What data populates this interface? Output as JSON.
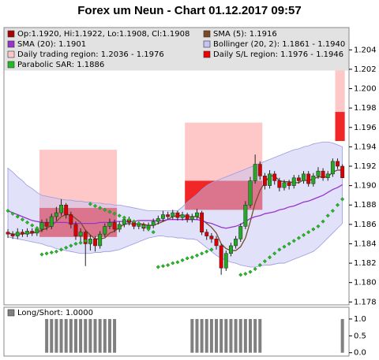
{
  "chart_data": [
    {
      "type": "candlestick",
      "title": "Forex um Neun - Chart 01.12.2017 09:57",
      "ohlc_name": "Op:1.1920, Hi:1.1922, Lo:1.1908, Cl:1.1908",
      "ohlc_color": "#aa0000",
      "up_color": "#22aa22",
      "down_color": "#dd0000",
      "open": [
        1.1852,
        1.185,
        1.1848,
        1.1852,
        1.185,
        1.1853,
        1.1851,
        1.1855,
        1.1862,
        1.1858,
        1.1868,
        1.1872,
        1.188,
        1.187,
        1.186,
        1.1848,
        1.1852,
        1.184,
        1.1845,
        1.1838,
        1.185,
        1.1858,
        1.1862,
        1.1855,
        1.186,
        1.1865,
        1.1862,
        1.1858,
        1.186,
        1.1856,
        1.1859,
        1.1863,
        1.1866,
        1.187,
        1.1868,
        1.1872,
        1.1867,
        1.187,
        1.1865,
        1.1868,
        1.1872,
        1.1852,
        1.1848,
        1.1845,
        1.1838,
        1.1815,
        1.183,
        1.1838,
        1.1845,
        1.1858,
        1.188,
        1.1905,
        1.1922,
        1.191,
        1.19,
        1.1912,
        1.1905,
        1.1898,
        1.1903,
        1.19,
        1.1908,
        1.1905,
        1.1912,
        1.1902,
        1.191,
        1.1915,
        1.1908,
        1.1912,
        1.1925,
        1.192
      ],
      "high": [
        1.1855,
        1.1853,
        1.1856,
        1.1855,
        1.1856,
        1.1856,
        1.1858,
        1.1865,
        1.1866,
        1.1871,
        1.1878,
        1.1886,
        1.1882,
        1.1873,
        1.1863,
        1.1856,
        1.1854,
        1.1849,
        1.1848,
        1.1853,
        1.1861,
        1.1866,
        1.1865,
        1.1863,
        1.1868,
        1.1868,
        1.1864,
        1.1863,
        1.1862,
        1.1862,
        1.1866,
        1.1869,
        1.1874,
        1.1873,
        1.1875,
        1.1874,
        1.1873,
        1.1872,
        1.1871,
        1.1876,
        1.1874,
        1.1855,
        1.1851,
        1.1848,
        1.184,
        1.1833,
        1.1841,
        1.1848,
        1.1861,
        1.1884,
        1.1909,
        1.1932,
        1.1925,
        1.1913,
        1.1916,
        1.1915,
        1.1908,
        1.1906,
        1.1906,
        1.1911,
        1.1911,
        1.1915,
        1.1915,
        1.1913,
        1.1919,
        1.1918,
        1.1915,
        1.1928,
        1.1928,
        1.1922
      ],
      "low": [
        1.1846,
        1.1845,
        1.1845,
        1.1847,
        1.1847,
        1.1848,
        1.1848,
        1.1852,
        1.1854,
        1.1855,
        1.1864,
        1.1869,
        1.1866,
        1.1856,
        1.1844,
        1.184,
        1.1817,
        1.1833,
        1.1832,
        1.1835,
        1.1847,
        1.1855,
        1.1852,
        1.1852,
        1.1857,
        1.1859,
        1.1855,
        1.1855,
        1.1853,
        1.1853,
        1.1856,
        1.186,
        1.1863,
        1.1865,
        1.1865,
        1.1864,
        1.1864,
        1.1862,
        1.1862,
        1.1865,
        1.1849,
        1.1844,
        1.1841,
        1.1834,
        1.1808,
        1.1812,
        1.1827,
        1.1835,
        1.1842,
        1.1855,
        1.1877,
        1.1902,
        1.1906,
        1.1896,
        1.1897,
        1.1901,
        1.1894,
        1.1895,
        1.1896,
        1.1897,
        1.1902,
        1.1902,
        1.1899,
        1.1899,
        1.1907,
        1.1905,
        1.1905,
        1.1909,
        1.1917,
        1.1908
      ],
      "close": [
        1.185,
        1.1848,
        1.1852,
        1.185,
        1.1853,
        1.1851,
        1.1855,
        1.1862,
        1.1858,
        1.1868,
        1.1872,
        1.188,
        1.187,
        1.186,
        1.1848,
        1.1852,
        1.184,
        1.1845,
        1.1838,
        1.185,
        1.1858,
        1.1862,
        1.1855,
        1.186,
        1.1865,
        1.1862,
        1.1858,
        1.186,
        1.1856,
        1.1859,
        1.1863,
        1.1866,
        1.187,
        1.1868,
        1.1872,
        1.1867,
        1.187,
        1.1865,
        1.1868,
        1.1872,
        1.1852,
        1.1848,
        1.1845,
        1.1838,
        1.1815,
        1.183,
        1.1838,
        1.1845,
        1.1858,
        1.188,
        1.1905,
        1.1922,
        1.191,
        1.19,
        1.1912,
        1.1905,
        1.1898,
        1.1903,
        1.19,
        1.1908,
        1.1905,
        1.1912,
        1.1902,
        1.191,
        1.1915,
        1.1908,
        1.1912,
        1.1925,
        1.192,
        1.1908
      ],
      "series": [
        {
          "name": "SMA (5): 1.1916",
          "color": "#7a4a22",
          "style": "line",
          "values": [
            1.1851,
            1.185,
            1.185,
            1.185,
            1.1851,
            1.1851,
            1.1852,
            1.1854,
            1.1856,
            1.1859,
            1.1863,
            1.1868,
            1.187,
            1.187,
            1.1866,
            1.1862,
            1.1854,
            1.1849,
            1.1845,
            1.1845,
            1.1846,
            1.1851,
            1.1853,
            1.1857,
            1.186,
            1.1861,
            1.186,
            1.1861,
            1.186,
            1.1859,
            1.1859,
            1.1861,
            1.1863,
            1.1865,
            1.1868,
            1.1869,
            1.1869,
            1.1868,
            1.1868,
            1.1868,
            1.1865,
            1.1861,
            1.1857,
            1.1851,
            1.184,
            1.1835,
            1.1833,
            1.1833,
            1.1837,
            1.1846,
            1.1863,
            1.1882,
            1.1895,
            1.1903,
            1.191,
            1.191,
            1.1905,
            1.1904,
            1.1904,
            1.1903,
            1.1903,
            1.1906,
            1.1905,
            1.1907,
            1.1909,
            1.1909,
            1.1909,
            1.1914,
            1.1916,
            1.1916
          ]
        },
        {
          "name": "SMA (20): 1.1901",
          "color": "#9933cc",
          "style": "line",
          "values": [
            1.1874,
            1.1872,
            1.187,
            1.1868,
            1.1866,
            1.1864,
            1.1863,
            1.1862,
            1.1862,
            1.1862,
            1.1862,
            1.1862,
            1.1862,
            1.1861,
            1.1861,
            1.1861,
            1.1861,
            1.1861,
            1.1861,
            1.1862,
            1.1862,
            1.1862,
            1.1863,
            1.1863,
            1.1863,
            1.1863,
            1.1863,
            1.1864,
            1.1864,
            1.1864,
            1.1864,
            1.1864,
            1.1864,
            1.1865,
            1.1865,
            1.1865,
            1.1865,
            1.1865,
            1.1865,
            1.1865,
            1.1864,
            1.1862,
            1.1861,
            1.1859,
            1.1857,
            1.1856,
            1.1857,
            1.1858,
            1.186,
            1.1863,
            1.1866,
            1.1868,
            1.1869,
            1.1871,
            1.1872,
            1.1873,
            1.1875,
            1.1876,
            1.1878,
            1.1879,
            1.1881,
            1.1883,
            1.1884,
            1.1886,
            1.1888,
            1.189,
            1.1893,
            1.1896,
            1.1898,
            1.1901
          ]
        },
        {
          "name": "Parabolic SAR: 1.1886",
          "color": "#22bb22",
          "style": "dots",
          "values": [
            1.1874,
            1.1871,
            1.1868,
            1.1865,
            1.1862,
            1.1859,
            1.1856,
            1.1829,
            1.183,
            1.1831,
            1.1832,
            1.1834,
            1.1836,
            1.1838,
            1.184,
            1.1841,
            1.1843,
            1.1881,
            1.1879,
            1.1877,
            1.1875,
            1.1873,
            1.1871,
            1.1869,
            1.1867,
            1.1865,
            1.1863,
            1.1861,
            1.1858,
            1.1855,
            1.1852,
            1.1816,
            1.1817,
            1.1818,
            1.182,
            1.1821,
            1.1823,
            1.1825,
            1.1826,
            1.1828,
            1.183,
            1.1832,
            1.1834,
            null,
            null,
            null,
            null,
            null,
            1.1808,
            1.1809,
            1.1811,
            1.1814,
            1.1818,
            1.1822,
            1.1826,
            1.183,
            1.1834,
            1.1837,
            1.184,
            1.1843,
            1.1846,
            1.1849,
            1.1852,
            1.1855,
            1.1858,
            1.1863,
            1.1869,
            1.1874,
            1.188,
            1.1886
          ]
        }
      ],
      "bollinger": {
        "name": "Bollinger (20, 2): 1.1861 - 1.1940",
        "color": "#c4c4f4",
        "upper": [
          1.1918,
          1.1914,
          1.1909,
          1.1905,
          1.19,
          1.1897,
          1.1893,
          1.189,
          1.1889,
          1.1888,
          1.1887,
          1.1886,
          1.1885,
          1.1885,
          1.1884,
          1.1884,
          1.1883,
          1.1883,
          1.1882,
          1.1882,
          1.1881,
          1.1881,
          1.188,
          1.188,
          1.1879,
          1.1878,
          1.1877,
          1.1876,
          1.1875,
          1.1874,
          1.1874,
          1.1874,
          1.1874,
          1.1874,
          1.1874,
          1.1874,
          1.1878,
          1.1883,
          1.1887,
          1.1891,
          1.1896,
          1.19,
          1.1903,
          1.1905,
          1.1907,
          1.1909,
          1.1911,
          1.1913,
          1.1915,
          1.1917,
          1.1919,
          1.1921,
          1.1923,
          1.1925,
          1.1927,
          1.1929,
          1.1931,
          1.1933,
          1.1935,
          1.1937,
          1.1938,
          1.194,
          1.1941,
          1.1943,
          1.1944,
          1.1945,
          1.1945,
          1.1944,
          1.1942,
          1.194
        ],
        "lower": [
          1.1847,
          1.1846,
          1.1845,
          1.1844,
          1.1843,
          1.1842,
          1.1841,
          1.184,
          1.1838,
          1.1837,
          1.1835,
          1.1834,
          1.1833,
          1.1832,
          1.1831,
          1.183,
          1.183,
          1.183,
          1.1831,
          1.1831,
          1.1832,
          1.1832,
          1.1833,
          1.1834,
          1.1836,
          1.1838,
          1.184,
          1.1842,
          1.1844,
          1.1846,
          1.1847,
          1.1848,
          1.1848,
          1.1847,
          1.1847,
          1.1846,
          1.1846,
          1.1845,
          1.1845,
          1.1844,
          1.184,
          1.1836,
          1.1832,
          1.1828,
          1.1825,
          1.1823,
          1.1821,
          1.182,
          1.1818,
          1.1817,
          1.1816,
          1.1816,
          1.1817,
          1.1818,
          1.1818,
          1.1819,
          1.182,
          1.182,
          1.1822,
          1.1824,
          1.1826,
          1.1828,
          1.183,
          1.1832,
          1.1836,
          1.1841,
          1.1846,
          1.1851,
          1.1856,
          1.1861
        ]
      },
      "regions": {
        "trading_name": "Daily trading region: 1.2036 - 1.1976",
        "trading_color": "#ffc8c8",
        "sl_name": "Daily S/L region: 1.1976 - 1.1946",
        "sl_color": "#ee0000",
        "items": [
          {
            "start": 7,
            "end": 22,
            "trading": [
              1.1937,
              1.1877
            ],
            "sl": [
              1.1877,
              1.1847
            ]
          },
          {
            "start": 37,
            "end": 52,
            "trading": [
              1.1965,
              1.1905
            ],
            "sl": [
              1.1905,
              1.1875
            ]
          },
          {
            "start": 68,
            "end": 69,
            "trading": [
              1.2036,
              1.1976
            ],
            "sl": [
              1.1976,
              1.1946
            ]
          }
        ]
      },
      "ylim": [
        1.1777,
        1.2063
      ],
      "yticks": [
        1.178,
        {
          "value": 1.18,
          "label": "1.180"
        },
        1.182,
        1.184,
        1.186,
        1.188,
        {
          "value": 1.19,
          "label": "1.190"
        },
        1.192,
        1.194,
        1.196,
        1.198,
        {
          "value": 1.2,
          "label": "1.200"
        },
        1.202,
        1.204
      ],
      "legend_position": "top"
    },
    {
      "type": "bar",
      "series": [
        {
          "name": "Long/Short: 1.0000",
          "color": "#808080",
          "values": [
            0,
            0,
            0,
            0,
            0,
            0,
            0,
            0,
            1,
            1,
            1,
            1,
            1,
            1,
            1,
            1,
            1,
            1,
            1,
            1,
            1,
            1,
            1,
            0,
            0,
            0,
            0,
            0,
            0,
            0,
            0,
            0,
            0,
            0,
            0,
            0,
            0,
            0,
            1,
            1,
            1,
            1,
            1,
            1,
            1,
            1,
            1,
            1,
            1,
            1,
            1,
            1,
            1,
            0,
            0,
            0,
            0,
            0,
            0,
            0,
            0,
            0,
            0,
            0,
            0,
            0,
            0,
            0,
            0,
            1
          ]
        }
      ],
      "ylim": [
        -0.1,
        1.35
      ],
      "yticks": [
        {
          "value": 0,
          "label": "0.0"
        },
        0.5,
        {
          "value": 1,
          "label": "1.0"
        }
      ],
      "legend_position": "top"
    }
  ]
}
